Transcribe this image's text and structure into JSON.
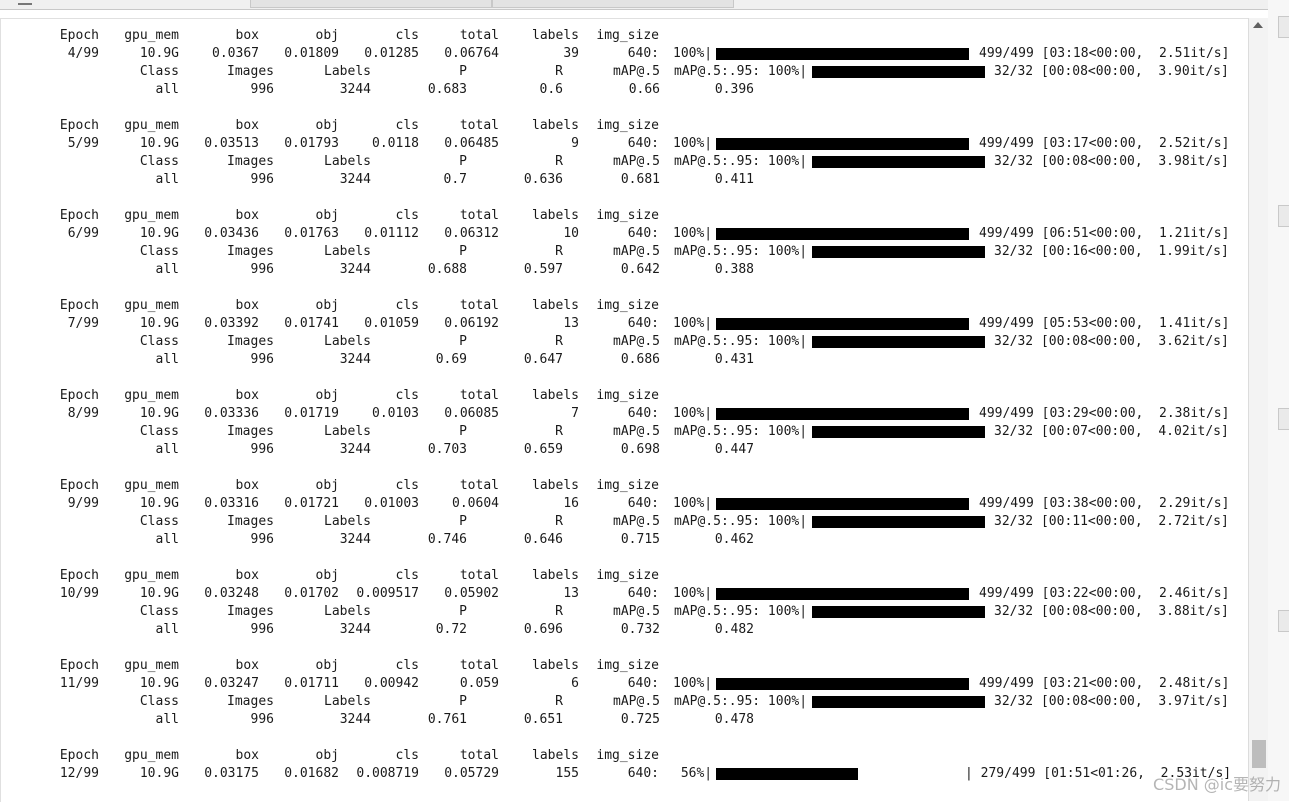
{
  "watermark": "CSDN @ic要努力",
  "header_labels": [
    "Epoch",
    "gpu_mem",
    "box",
    "obj",
    "cls",
    "total",
    "labels",
    "img_size"
  ],
  "val_labels": [
    "Class",
    "Images",
    "Labels",
    "P",
    "R",
    "mAP@.5",
    "mAP@.5:.95: 100%|"
  ],
  "epochs": [
    {
      "epoch": "4/99",
      "gpu": "10.9G",
      "box": "0.0367",
      "obj": "0.01809",
      "cls": "0.01285",
      "total": "0.06764",
      "labels": "39",
      "size": "640:",
      "pct": "100%|",
      "train_prog": 1.0,
      "train_stats": "499/499 [03:18<00:00,  2.51it/s]",
      "val_stats": "32/32 [00:08<00:00,  3.90it/s]",
      "all": "all",
      "images": "996",
      "nlabels": "3244",
      "p": "0.683",
      "r": "0.6",
      "map50": "0.66",
      "map": "0.396"
    },
    {
      "epoch": "5/99",
      "gpu": "10.9G",
      "box": "0.03513",
      "obj": "0.01793",
      "cls": "0.0118",
      "total": "0.06485",
      "labels": "9",
      "size": "640:",
      "pct": "100%|",
      "train_prog": 1.0,
      "train_stats": "499/499 [03:17<00:00,  2.52it/s]",
      "val_stats": "32/32 [00:08<00:00,  3.98it/s]",
      "all": "all",
      "images": "996",
      "nlabels": "3244",
      "p": "0.7",
      "r": "0.636",
      "map50": "0.681",
      "map": "0.411"
    },
    {
      "epoch": "6/99",
      "gpu": "10.9G",
      "box": "0.03436",
      "obj": "0.01763",
      "cls": "0.01112",
      "total": "0.06312",
      "labels": "10",
      "size": "640:",
      "pct": "100%|",
      "train_prog": 1.0,
      "train_stats": "499/499 [06:51<00:00,  1.21it/s]",
      "val_stats": "32/32 [00:16<00:00,  1.99it/s]",
      "all": "all",
      "images": "996",
      "nlabels": "3244",
      "p": "0.688",
      "r": "0.597",
      "map50": "0.642",
      "map": "0.388"
    },
    {
      "epoch": "7/99",
      "gpu": "10.9G",
      "box": "0.03392",
      "obj": "0.01741",
      "cls": "0.01059",
      "total": "0.06192",
      "labels": "13",
      "size": "640:",
      "pct": "100%|",
      "train_prog": 1.0,
      "train_stats": "499/499 [05:53<00:00,  1.41it/s]",
      "val_stats": "32/32 [00:08<00:00,  3.62it/s]",
      "all": "all",
      "images": "996",
      "nlabels": "3244",
      "p": "0.69",
      "r": "0.647",
      "map50": "0.686",
      "map": "0.431"
    },
    {
      "epoch": "8/99",
      "gpu": "10.9G",
      "box": "0.03336",
      "obj": "0.01719",
      "cls": "0.0103",
      "total": "0.06085",
      "labels": "7",
      "size": "640:",
      "pct": "100%|",
      "train_prog": 1.0,
      "train_stats": "499/499 [03:29<00:00,  2.38it/s]",
      "val_stats": "32/32 [00:07<00:00,  4.02it/s]",
      "all": "all",
      "images": "996",
      "nlabels": "3244",
      "p": "0.703",
      "r": "0.659",
      "map50": "0.698",
      "map": "0.447"
    },
    {
      "epoch": "9/99",
      "gpu": "10.9G",
      "box": "0.03316",
      "obj": "0.01721",
      "cls": "0.01003",
      "total": "0.0604",
      "labels": "16",
      "size": "640:",
      "pct": "100%|",
      "train_prog": 1.0,
      "train_stats": "499/499 [03:38<00:00,  2.29it/s]",
      "val_stats": "32/32 [00:11<00:00,  2.72it/s]",
      "all": "all",
      "images": "996",
      "nlabels": "3244",
      "p": "0.746",
      "r": "0.646",
      "map50": "0.715",
      "map": "0.462"
    },
    {
      "epoch": "10/99",
      "gpu": "10.9G",
      "box": "0.03248",
      "obj": "0.01702",
      "cls": "0.009517",
      "total": "0.05902",
      "labels": "13",
      "size": "640:",
      "pct": "100%|",
      "train_prog": 1.0,
      "train_stats": "499/499 [03:22<00:00,  2.46it/s]",
      "val_stats": "32/32 [00:08<00:00,  3.88it/s]",
      "all": "all",
      "images": "996",
      "nlabels": "3244",
      "p": "0.72",
      "r": "0.696",
      "map50": "0.732",
      "map": "0.482"
    },
    {
      "epoch": "11/99",
      "gpu": "10.9G",
      "box": "0.03247",
      "obj": "0.01711",
      "cls": "0.00942",
      "total": "0.059",
      "labels": "6",
      "size": "640:",
      "pct": "100%|",
      "train_prog": 1.0,
      "train_stats": "499/499 [03:21<00:00,  2.48it/s]",
      "val_stats": "32/32 [00:08<00:00,  3.97it/s]",
      "all": "all",
      "images": "996",
      "nlabels": "3244",
      "p": "0.761",
      "r": "0.651",
      "map50": "0.725",
      "map": "0.478"
    }
  ],
  "current": {
    "epoch": "12/99",
    "gpu": "10.9G",
    "box": "0.03175",
    "obj": "0.01682",
    "cls": "0.008719",
    "total": "0.05729",
    "labels": "155",
    "size": "640:",
    "pct": " 56%|",
    "train_prog": 0.56,
    "train_stats": "| 279/499 [01:51<01:26,  2.53it/s]"
  }
}
